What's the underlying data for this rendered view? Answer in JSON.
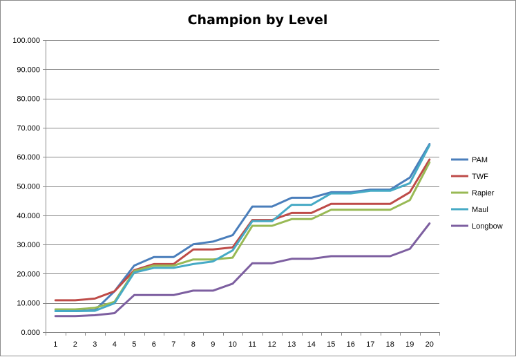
{
  "chart_data": {
    "type": "line",
    "title": "Champion by Level",
    "xlabel": "",
    "ylabel": "",
    "x": [
      1,
      2,
      3,
      4,
      5,
      6,
      7,
      8,
      9,
      10,
      11,
      12,
      13,
      14,
      15,
      16,
      17,
      18,
      19,
      20
    ],
    "ylim": [
      0,
      100
    ],
    "yticks": [
      0,
      10,
      20,
      30,
      40,
      50,
      60,
      70,
      80,
      90,
      100
    ],
    "ytick_labels": [
      "0.000",
      "10.000",
      "20.000",
      "30.000",
      "40.000",
      "50.000",
      "60.000",
      "70.000",
      "80.000",
      "90.000",
      "100.000"
    ],
    "grid": true,
    "legend_position": "right",
    "series": [
      {
        "name": "PAM",
        "color": "#4a7ebb",
        "values": [
          7.2,
          7.2,
          7.5,
          14.0,
          22.8,
          25.7,
          25.7,
          30.1,
          31.0,
          33.2,
          43.0,
          43.0,
          46.0,
          46.0,
          47.9,
          47.9,
          48.8,
          48.8,
          52.9,
          64.4
        ]
      },
      {
        "name": "TWF",
        "color": "#be4b48",
        "values": [
          10.9,
          10.9,
          11.5,
          14.0,
          21.2,
          23.3,
          23.3,
          28.3,
          28.3,
          29.0,
          38.4,
          38.4,
          40.8,
          40.8,
          43.9,
          43.9,
          43.9,
          43.9,
          47.9,
          59.1
        ]
      },
      {
        "name": "Rapier",
        "color": "#98b954",
        "values": [
          7.8,
          7.8,
          8.3,
          10.4,
          20.9,
          22.8,
          22.8,
          24.9,
          24.9,
          25.5,
          36.4,
          36.4,
          38.7,
          38.7,
          41.9,
          41.9,
          41.9,
          41.9,
          45.2,
          58.1
        ]
      },
      {
        "name": "Maul",
        "color": "#46aac5",
        "values": [
          7.2,
          7.2,
          7.3,
          9.9,
          20.4,
          22.0,
          22.0,
          23.3,
          24.2,
          28.0,
          38.0,
          38.0,
          43.6,
          43.6,
          47.5,
          47.5,
          48.4,
          48.4,
          51.0,
          64.0
        ]
      },
      {
        "name": "Longbow",
        "color": "#7d5fa0",
        "values": [
          5.5,
          5.5,
          5.8,
          6.5,
          12.7,
          12.7,
          12.7,
          14.2,
          14.2,
          16.6,
          23.6,
          23.6,
          25.1,
          25.1,
          26.0,
          26.0,
          26.0,
          26.0,
          28.5,
          37.2
        ]
      }
    ]
  }
}
